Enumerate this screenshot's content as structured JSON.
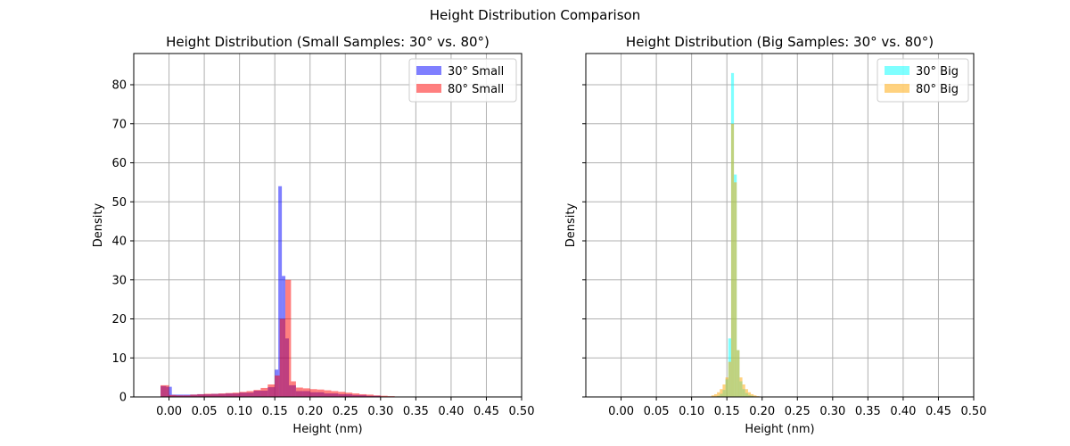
{
  "figure": {
    "suptitle": "Height Distribution Comparison"
  },
  "chart_data": [
    {
      "type": "bar",
      "title": "Height Distribution (Small Samples: 30° vs. 80°)",
      "xlabel": "Height (nm)",
      "ylabel": "Density",
      "xlim": [
        -0.05,
        0.5
      ],
      "ylim": [
        0,
        88
      ],
      "xticks": [
        "0.00",
        "0.05",
        "0.10",
        "0.15",
        "0.20",
        "0.25",
        "0.30",
        "0.35",
        "0.40",
        "0.45",
        "0.50"
      ],
      "yticks": [
        "0",
        "10",
        "20",
        "30",
        "40",
        "50",
        "60",
        "70",
        "80"
      ],
      "grid": true,
      "legend_position": "top-right",
      "series": [
        {
          "name": "30° Small",
          "color": "#0000ff",
          "alpha": 0.5,
          "bins": [
            [
              -0.012,
              -0.004,
              2.8
            ],
            [
              -0.004,
              0.004,
              2.6
            ],
            [
              0.004,
              0.02,
              0.6
            ],
            [
              0.02,
              0.04,
              0.6
            ],
            [
              0.04,
              0.06,
              0.7
            ],
            [
              0.06,
              0.08,
              0.8
            ],
            [
              0.08,
              0.1,
              0.9
            ],
            [
              0.1,
              0.12,
              1.1
            ],
            [
              0.12,
              0.14,
              1.6
            ],
            [
              0.14,
              0.15,
              2.5
            ],
            [
              0.15,
              0.155,
              7.0
            ],
            [
              0.155,
              0.16,
              54.0
            ],
            [
              0.16,
              0.165,
              31.0
            ],
            [
              0.165,
              0.17,
              15.0
            ],
            [
              0.17,
              0.18,
              3.0
            ],
            [
              0.18,
              0.2,
              1.5
            ],
            [
              0.2,
              0.22,
              1.2
            ],
            [
              0.22,
              0.24,
              0.9
            ],
            [
              0.24,
              0.26,
              0.7
            ],
            [
              0.26,
              0.28,
              0.5
            ],
            [
              0.28,
              0.3,
              0.3
            ],
            [
              0.3,
              0.32,
              0.1
            ]
          ]
        },
        {
          "name": "80° Small",
          "color": "#ff0000",
          "alpha": 0.5,
          "bins": [
            [
              -0.012,
              0.0,
              3.0
            ],
            [
              0.0,
              0.01,
              0.5
            ],
            [
              0.01,
              0.02,
              0.4
            ],
            [
              0.02,
              0.03,
              0.4
            ],
            [
              0.03,
              0.04,
              0.6
            ],
            [
              0.04,
              0.05,
              0.7
            ],
            [
              0.05,
              0.06,
              0.8
            ],
            [
              0.06,
              0.07,
              0.8
            ],
            [
              0.07,
              0.08,
              0.9
            ],
            [
              0.08,
              0.09,
              1.0
            ],
            [
              0.09,
              0.1,
              1.1
            ],
            [
              0.1,
              0.11,
              1.3
            ],
            [
              0.11,
              0.12,
              1.5
            ],
            [
              0.12,
              0.13,
              1.8
            ],
            [
              0.13,
              0.14,
              2.3
            ],
            [
              0.14,
              0.15,
              3.2
            ],
            [
              0.15,
              0.157,
              5.5
            ],
            [
              0.157,
              0.165,
              20.0
            ],
            [
              0.165,
              0.173,
              30.0
            ],
            [
              0.173,
              0.18,
              4.0
            ],
            [
              0.18,
              0.19,
              2.4
            ],
            [
              0.19,
              0.2,
              2.2
            ],
            [
              0.2,
              0.21,
              2.0
            ],
            [
              0.21,
              0.22,
              1.9
            ],
            [
              0.22,
              0.23,
              1.7
            ],
            [
              0.23,
              0.24,
              1.5
            ],
            [
              0.24,
              0.25,
              1.3
            ],
            [
              0.25,
              0.26,
              1.1
            ],
            [
              0.26,
              0.27,
              0.9
            ],
            [
              0.27,
              0.28,
              0.7
            ],
            [
              0.28,
              0.29,
              0.6
            ],
            [
              0.29,
              0.3,
              0.4
            ],
            [
              0.3,
              0.31,
              0.3
            ],
            [
              0.31,
              0.32,
              0.2
            ],
            [
              0.32,
              0.335,
              0.1
            ]
          ]
        }
      ]
    },
    {
      "type": "bar",
      "title": "Height Distribution (Big Samples: 30° vs. 80°)",
      "xlabel": "Height (nm)",
      "ylabel": "Density",
      "xlim": [
        -0.05,
        0.5
      ],
      "ylim": [
        0,
        88
      ],
      "xticks": [
        "0.00",
        "0.05",
        "0.10",
        "0.15",
        "0.20",
        "0.25",
        "0.30",
        "0.35",
        "0.40",
        "0.45",
        "0.50"
      ],
      "yticks": [
        "0",
        "10",
        "20",
        "30",
        "40",
        "50",
        "60",
        "70",
        "80"
      ],
      "grid": true,
      "legend_position": "top-right",
      "series": [
        {
          "name": "30° Big",
          "color": "#00ffff",
          "alpha": 0.5,
          "bins": [
            [
              0.136,
              0.14,
              0.3
            ],
            [
              0.14,
              0.144,
              0.8
            ],
            [
              0.144,
              0.148,
              1.8
            ],
            [
              0.148,
              0.152,
              4.5
            ],
            [
              0.152,
              0.156,
              15.0
            ],
            [
              0.156,
              0.16,
              83.0
            ],
            [
              0.16,
              0.164,
              57.0
            ],
            [
              0.164,
              0.168,
              12.0
            ],
            [
              0.168,
              0.172,
              4.0
            ],
            [
              0.172,
              0.176,
              2.0
            ],
            [
              0.176,
              0.18,
              1.0
            ],
            [
              0.18,
              0.184,
              0.5
            ],
            [
              0.184,
              0.188,
              0.3
            ],
            [
              0.188,
              0.192,
              0.1
            ]
          ]
        },
        {
          "name": "80° Big",
          "color": "#ffa500",
          "alpha": 0.5,
          "bins": [
            [
              0.128,
              0.132,
              0.4
            ],
            [
              0.132,
              0.136,
              0.7
            ],
            [
              0.136,
              0.14,
              1.2
            ],
            [
              0.14,
              0.144,
              2.0
            ],
            [
              0.144,
              0.148,
              3.2
            ],
            [
              0.148,
              0.152,
              5.0
            ],
            [
              0.152,
              0.156,
              9.0
            ],
            [
              0.156,
              0.16,
              70.0
            ],
            [
              0.16,
              0.164,
              55.0
            ],
            [
              0.164,
              0.168,
              12.0
            ],
            [
              0.168,
              0.172,
              5.0
            ],
            [
              0.172,
              0.176,
              3.2
            ],
            [
              0.176,
              0.18,
              2.0
            ],
            [
              0.18,
              0.184,
              1.2
            ],
            [
              0.184,
              0.188,
              0.7
            ],
            [
              0.188,
              0.192,
              0.4
            ],
            [
              0.192,
              0.196,
              0.2
            ],
            [
              0.196,
              0.2,
              0.1
            ]
          ]
        }
      ]
    }
  ]
}
